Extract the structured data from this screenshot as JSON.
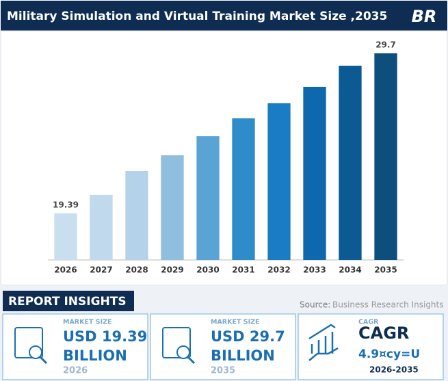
{
  "chart_data": {
    "type": "bar",
    "title": "Military Simulation and Virtual Training Market Size ,2035",
    "categories": [
      "2026",
      "2027",
      "2028",
      "2029",
      "2030",
      "2031",
      "2032",
      "2033",
      "2034",
      "2035"
    ],
    "values": [
      19.39,
      20.58,
      22.12,
      23.13,
      24.36,
      25.51,
      26.48,
      27.54,
      28.9,
      29.7
    ],
    "value_labels": [
      "19.39",
      null,
      null,
      null,
      null,
      null,
      null,
      null,
      null,
      "29.7"
    ],
    "colors": [
      "#c9dff0",
      "#c1d9ec",
      "#b4d3ea",
      "#8fbedf",
      "#5aa3d5",
      "#2f8ccb",
      "#1a7cc3",
      "#0d68ad",
      "#0b5a94",
      "#0d4e7c"
    ],
    "ylim": [
      16.39,
      30.93
    ]
  },
  "logo": "BR",
  "insights": {
    "heading": "REPORT INSIGHTS",
    "source_label": "Source:",
    "source": "Business Research Insights",
    "cards": [
      {
        "label": "MARKET SIZE",
        "value": "USD 19.39",
        "unit": "BILLION",
        "year": "2026"
      },
      {
        "label": "MARKET SIZE",
        "value": "USD 29.7",
        "unit": "BILLION",
        "year": "2035"
      },
      {
        "label": "CAGR",
        "value": "4.9¤cy=U",
        "year": "2026-2035"
      }
    ]
  }
}
